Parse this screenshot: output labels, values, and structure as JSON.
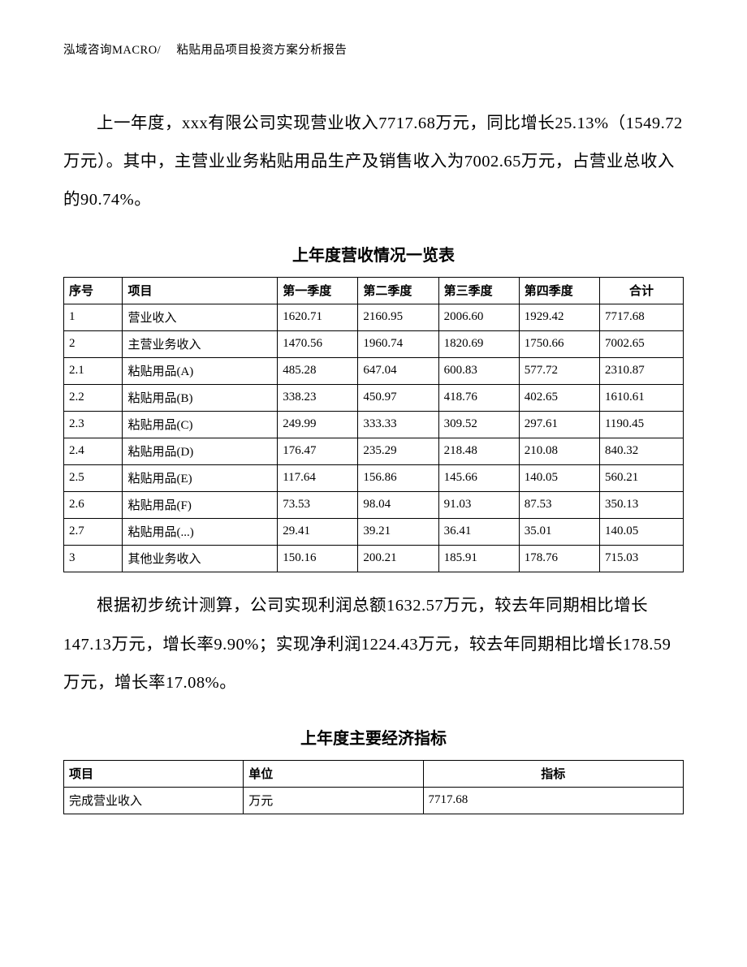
{
  "header": "泓域咨询MACRO/　 粘贴用品项目投资方案分析报告",
  "para1": "上一年度，xxx有限公司实现营业收入7717.68万元，同比增长25.13%（1549.72万元）。其中，主营业业务粘贴用品生产及销售收入为7002.65万元，占营业总收入的90.74%。",
  "table1": {
    "title": "上年度营收情况一览表",
    "headers": {
      "seq": "序号",
      "item": "项目",
      "q1": "第一季度",
      "q2": "第二季度",
      "q3": "第三季度",
      "q4": "第四季度",
      "total": "合计"
    },
    "rows": [
      {
        "seq": "1",
        "item": "营业收入",
        "q1": "1620.71",
        "q2": "2160.95",
        "q3": "2006.60",
        "q4": "1929.42",
        "total": "7717.68"
      },
      {
        "seq": "2",
        "item": "主营业务收入",
        "q1": "1470.56",
        "q2": "1960.74",
        "q3": "1820.69",
        "q4": "1750.66",
        "total": "7002.65"
      },
      {
        "seq": "2.1",
        "item": "粘贴用品(A)",
        "q1": "485.28",
        "q2": "647.04",
        "q3": "600.83",
        "q4": "577.72",
        "total": "2310.87"
      },
      {
        "seq": "2.2",
        "item": "粘贴用品(B)",
        "q1": "338.23",
        "q2": "450.97",
        "q3": "418.76",
        "q4": "402.65",
        "total": "1610.61"
      },
      {
        "seq": "2.3",
        "item": "粘贴用品(C)",
        "q1": "249.99",
        "q2": "333.33",
        "q3": "309.52",
        "q4": "297.61",
        "total": "1190.45"
      },
      {
        "seq": "2.4",
        "item": "粘贴用品(D)",
        "q1": "176.47",
        "q2": "235.29",
        "q3": "218.48",
        "q4": "210.08",
        "total": "840.32"
      },
      {
        "seq": "2.5",
        "item": "粘贴用品(E)",
        "q1": "117.64",
        "q2": "156.86",
        "q3": "145.66",
        "q4": "140.05",
        "total": "560.21"
      },
      {
        "seq": "2.6",
        "item": "粘贴用品(F)",
        "q1": "73.53",
        "q2": "98.04",
        "q3": "91.03",
        "q4": "87.53",
        "total": "350.13"
      },
      {
        "seq": "2.7",
        "item": "粘贴用品(...)",
        "q1": "29.41",
        "q2": "39.21",
        "q3": "36.41",
        "q4": "35.01",
        "total": "140.05"
      },
      {
        "seq": "3",
        "item": "其他业务收入",
        "q1": "150.16",
        "q2": "200.21",
        "q3": "185.91",
        "q4": "178.76",
        "total": "715.03"
      }
    ]
  },
  "para2": "根据初步统计测算，公司实现利润总额1632.57万元，较去年同期相比增长147.13万元，增长率9.90%；实现净利润1224.43万元，较去年同期相比增长178.59万元，增长率17.08%。",
  "table2": {
    "title": "上年度主要经济指标",
    "headers": {
      "a": "项目",
      "b": "单位",
      "c": "指标"
    },
    "rows": [
      {
        "a": "完成营业收入",
        "b": "万元",
        "c": "7717.68"
      }
    ]
  }
}
